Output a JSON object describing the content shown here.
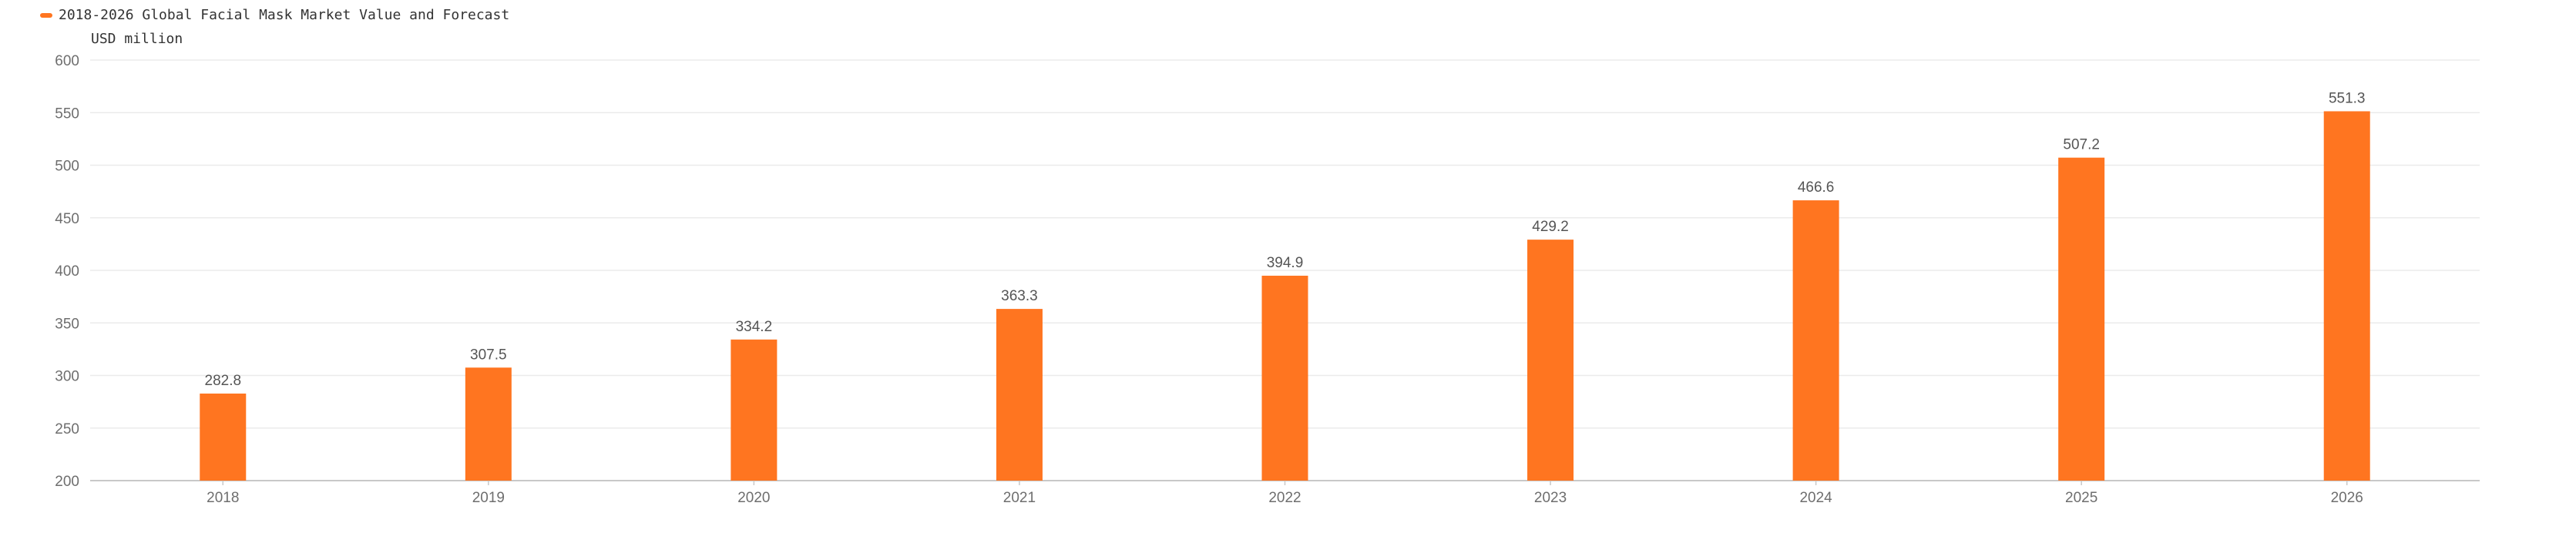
{
  "legend": {
    "label": "2018-2026 Global Facial Mask Market Value and Forecast"
  },
  "unit": "USD million",
  "colors": {
    "bar": "#ff7520",
    "grid": "#ebebeb",
    "axis": "#c8c8c8"
  },
  "chart_data": {
    "type": "bar",
    "title": "",
    "xlabel": "",
    "ylabel": "USD million",
    "categories": [
      "2018",
      "2019",
      "2020",
      "2021",
      "2022",
      "2023",
      "2024",
      "2025",
      "2026"
    ],
    "series": [
      {
        "name": "2018-2026 Global Facial Mask Market Value and Forecast",
        "values": [
          282.8,
          307.5,
          334.2,
          363.3,
          394.9,
          429.2,
          466.6,
          507.2,
          551.3
        ]
      }
    ],
    "data_labels": [
      "282.8",
      "307.5",
      "334.2",
      "363.3",
      "394.9",
      "429.2",
      "466.6",
      "507.2",
      "551.3"
    ],
    "ylim": [
      200,
      600
    ],
    "yticks": [
      "200",
      "250",
      "300",
      "350",
      "400",
      "450",
      "500",
      "550",
      "600"
    ],
    "grid": true,
    "legend_position": "top-left"
  }
}
